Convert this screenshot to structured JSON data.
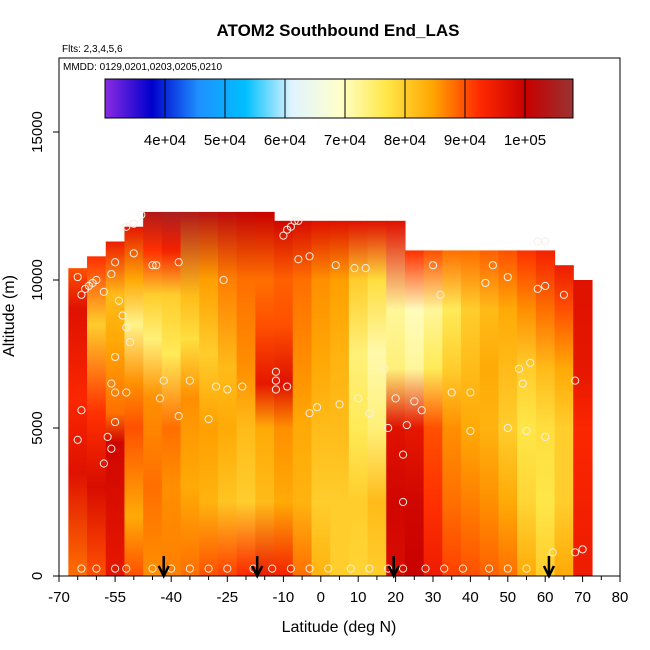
{
  "chart_data": {
    "type": "heatmap",
    "title": "ATOM2 Southbound End_LAS",
    "flights_text": "Flts: 2,3,4,5,6",
    "dates_text": "MMDD: 0129,0201,0203,0205,0210",
    "xlabel": "Latitude (deg N)",
    "ylabel": "Altitude (m)",
    "xlim": [
      -70,
      80
    ],
    "ylim": [
      0,
      17500
    ],
    "x_ticks": [
      -70,
      -55,
      -40,
      -25,
      -10,
      0,
      10,
      20,
      30,
      40,
      50,
      60,
      70,
      80
    ],
    "x_tick_labels": [
      "-70",
      "-55",
      "-40",
      "-25",
      "-10",
      "0",
      "10",
      "20",
      "30",
      "40",
      "50",
      "60",
      "70",
      "80"
    ],
    "y_ticks": [
      0,
      5000,
      10000,
      15000
    ],
    "y_tick_labels": [
      "0",
      "5000",
      "10000",
      "15000"
    ],
    "colorbar": {
      "min": 30000,
      "max": 108000,
      "ticks": [
        40000,
        50000,
        60000,
        70000,
        80000,
        90000,
        100000
      ],
      "tick_labels": [
        "4e+04",
        "5e+04",
        "6e+04",
        "7e+04",
        "8e+04",
        "9e+04",
        "1e+05"
      ],
      "colors": [
        "#8a2be2",
        "#0000cd",
        "#1e90ff",
        "#00bfff",
        "#e0f4ff",
        "#ffffcc",
        "#ffe84a",
        "#ffa500",
        "#ff2a00",
        "#c80000",
        "#993333"
      ]
    },
    "columns": [
      {
        "x": -65,
        "top": 10400,
        "stops": [
          [
            0,
            88000
          ],
          [
            3500,
            97000
          ],
          [
            6000,
            93000
          ],
          [
            9000,
            97000
          ],
          [
            10400,
            90000
          ]
        ]
      },
      {
        "x": -60,
        "top": 10800,
        "stops": [
          [
            0,
            90000
          ],
          [
            3000,
            98000
          ],
          [
            5500,
            92000
          ],
          [
            8500,
            80000
          ],
          [
            10800,
            92000
          ]
        ]
      },
      {
        "x": -55,
        "top": 11300,
        "stops": [
          [
            0,
            96000
          ],
          [
            4500,
            99000
          ],
          [
            5500,
            88000
          ],
          [
            8000,
            84000
          ],
          [
            9500,
            82000
          ],
          [
            11300,
            95000
          ]
        ]
      },
      {
        "x": -50,
        "top": 11800,
        "stops": [
          [
            0,
            90000
          ],
          [
            2000,
            84000
          ],
          [
            5000,
            90000
          ],
          [
            6500,
            86000
          ],
          [
            8500,
            73000
          ],
          [
            10000,
            84000
          ],
          [
            11800,
            96000
          ]
        ]
      },
      {
        "x": -45,
        "top": 12300,
        "stops": [
          [
            0,
            86000
          ],
          [
            3000,
            88000
          ],
          [
            6000,
            86000
          ],
          [
            8000,
            74000
          ],
          [
            9500,
            80000
          ],
          [
            11000,
            92000
          ],
          [
            12300,
            104000
          ]
        ]
      },
      {
        "x": -40,
        "top": 12300,
        "stops": [
          [
            0,
            87000
          ],
          [
            3000,
            86000
          ],
          [
            5000,
            88000
          ],
          [
            7500,
            76000
          ],
          [
            9500,
            80000
          ],
          [
            11000,
            94000
          ],
          [
            12300,
            105000
          ]
        ]
      },
      {
        "x": -35,
        "top": 12300,
        "stops": [
          [
            0,
            88000
          ],
          [
            3000,
            84000
          ],
          [
            6000,
            86000
          ],
          [
            8000,
            78000
          ],
          [
            9500,
            82000
          ],
          [
            12300,
            104000
          ]
        ]
      },
      {
        "x": -30,
        "top": 12300,
        "stops": [
          [
            0,
            90000
          ],
          [
            2500,
            83000
          ],
          [
            5000,
            85000
          ],
          [
            7500,
            80000
          ],
          [
            10000,
            85000
          ],
          [
            12300,
            103000
          ]
        ]
      },
      {
        "x": -25,
        "top": 12300,
        "stops": [
          [
            0,
            91000
          ],
          [
            2500,
            81000
          ],
          [
            5000,
            84000
          ],
          [
            7000,
            82000
          ],
          [
            10000,
            87000
          ],
          [
            12300,
            102000
          ]
        ]
      },
      {
        "x": -20,
        "top": 12300,
        "stops": [
          [
            0,
            93000
          ],
          [
            2500,
            80000
          ],
          [
            5000,
            82000
          ],
          [
            7000,
            86000
          ],
          [
            10000,
            88000
          ],
          [
            12300,
            101000
          ]
        ]
      },
      {
        "x": -15,
        "top": 12300,
        "stops": [
          [
            0,
            95000
          ],
          [
            2500,
            82000
          ],
          [
            5000,
            84000
          ],
          [
            6500,
            96000
          ],
          [
            8500,
            90000
          ],
          [
            10000,
            88000
          ],
          [
            12300,
            100000
          ]
        ]
      },
      {
        "x": -10,
        "top": 12000,
        "stops": [
          [
            0,
            94000
          ],
          [
            2500,
            84000
          ],
          [
            5000,
            86000
          ],
          [
            6500,
            97000
          ],
          [
            8500,
            90000
          ],
          [
            10000,
            89000
          ],
          [
            12000,
            99000
          ]
        ]
      },
      {
        "x": -5,
        "top": 12000,
        "stops": [
          [
            0,
            88000
          ],
          [
            2500,
            83000
          ],
          [
            5000,
            84000
          ],
          [
            7000,
            86000
          ],
          [
            10000,
            88000
          ],
          [
            12000,
            98000
          ]
        ]
      },
      {
        "x": 0,
        "top": 12000,
        "stops": [
          [
            0,
            83000
          ],
          [
            2500,
            80000
          ],
          [
            5000,
            82000
          ],
          [
            7000,
            84000
          ],
          [
            10000,
            86000
          ],
          [
            12000,
            97000
          ]
        ]
      },
      {
        "x": 5,
        "top": 12000,
        "stops": [
          [
            0,
            80000
          ],
          [
            2500,
            80000
          ],
          [
            5000,
            82000
          ],
          [
            7500,
            83000
          ],
          [
            10000,
            85000
          ],
          [
            12000,
            97000
          ]
        ]
      },
      {
        "x": 10,
        "top": 12000,
        "stops": [
          [
            0,
            79000
          ],
          [
            2500,
            80000
          ],
          [
            5000,
            76000
          ],
          [
            7500,
            74000
          ],
          [
            10000,
            80000
          ],
          [
            12000,
            97000
          ]
        ]
      },
      {
        "x": 15,
        "top": 12000,
        "stops": [
          [
            0,
            80000
          ],
          [
            2500,
            82000
          ],
          [
            5000,
            74000
          ],
          [
            7500,
            71000
          ],
          [
            10000,
            78000
          ],
          [
            12000,
            97000
          ]
        ]
      },
      {
        "x": 20,
        "top": 12000,
        "stops": [
          [
            0,
            98000
          ],
          [
            2500,
            99000
          ],
          [
            5000,
            97000
          ],
          [
            7000,
            74000
          ],
          [
            9000,
            72000
          ],
          [
            12000,
            97000
          ]
        ]
      },
      {
        "x": 25,
        "top": 11000,
        "stops": [
          [
            0,
            100000
          ],
          [
            2500,
            99000
          ],
          [
            5000,
            96000
          ],
          [
            7000,
            72000
          ],
          [
            9000,
            70000
          ],
          [
            11000,
            92000
          ]
        ]
      },
      {
        "x": 30,
        "top": 11000,
        "stops": [
          [
            0,
            95000
          ],
          [
            2500,
            92000
          ],
          [
            5000,
            90000
          ],
          [
            7000,
            76000
          ],
          [
            9000,
            72000
          ],
          [
            11000,
            90000
          ]
        ]
      },
      {
        "x": 35,
        "top": 11000,
        "stops": [
          [
            0,
            91000
          ],
          [
            2500,
            88000
          ],
          [
            5000,
            86000
          ],
          [
            7000,
            80000
          ],
          [
            9000,
            76000
          ],
          [
            11000,
            88000
          ]
        ]
      },
      {
        "x": 40,
        "top": 11000,
        "stops": [
          [
            0,
            90000
          ],
          [
            2500,
            87000
          ],
          [
            5000,
            84000
          ],
          [
            7000,
            82000
          ],
          [
            9000,
            80000
          ],
          [
            11000,
            88000
          ]
        ]
      },
      {
        "x": 45,
        "top": 11000,
        "stops": [
          [
            0,
            89000
          ],
          [
            2500,
            86000
          ],
          [
            5000,
            83000
          ],
          [
            7000,
            84000
          ],
          [
            9000,
            82000
          ],
          [
            11000,
            89000
          ]
        ]
      },
      {
        "x": 50,
        "top": 11000,
        "stops": [
          [
            0,
            88000
          ],
          [
            2500,
            84000
          ],
          [
            5000,
            80000
          ],
          [
            7000,
            82000
          ],
          [
            9000,
            84000
          ],
          [
            11000,
            90000
          ]
        ]
      },
      {
        "x": 55,
        "top": 11000,
        "stops": [
          [
            0,
            84000
          ],
          [
            2500,
            79000
          ],
          [
            5000,
            77000
          ],
          [
            7000,
            80000
          ],
          [
            9000,
            86000
          ],
          [
            11000,
            92000
          ]
        ]
      },
      {
        "x": 60,
        "top": 11000,
        "stops": [
          [
            0,
            80000
          ],
          [
            2500,
            77000
          ],
          [
            5000,
            78000
          ],
          [
            7000,
            82000
          ],
          [
            9000,
            88000
          ],
          [
            11000,
            94000
          ]
        ]
      },
      {
        "x": 65,
        "top": 10500,
        "stops": [
          [
            0,
            84000
          ],
          [
            2500,
            80000
          ],
          [
            5000,
            80000
          ],
          [
            7000,
            84000
          ],
          [
            9000,
            90000
          ],
          [
            10500,
            95000
          ]
        ]
      },
      {
        "x": 70,
        "top": 10000,
        "stops": [
          [
            0,
            95000
          ],
          [
            2500,
            94000
          ],
          [
            5000,
            93000
          ],
          [
            7000,
            96000
          ],
          [
            10000,
            97000
          ]
        ]
      }
    ],
    "markers_x": [
      -42,
      -17,
      19.5,
      61
    ],
    "points": [
      [
        -65,
        10100
      ],
      [
        -64,
        9500
      ],
      [
        -63,
        9700
      ],
      [
        -62,
        9800
      ],
      [
        -61,
        9900
      ],
      [
        -60,
        10000
      ],
      [
        -58,
        9600
      ],
      [
        -56,
        10200
      ],
      [
        -55,
        10600
      ],
      [
        -54,
        9300
      ],
      [
        -53,
        8800
      ],
      [
        -52,
        8400
      ],
      [
        -51,
        7900
      ],
      [
        -55,
        7400
      ],
      [
        -56,
        6500
      ],
      [
        -55,
        6200
      ],
      [
        -52,
        6200
      ],
      [
        -55,
        5200
      ],
      [
        -57,
        4700
      ],
      [
        -56,
        4300
      ],
      [
        -58,
        3800
      ],
      [
        -64,
        5600
      ],
      [
        -65,
        4600
      ],
      [
        -64,
        250
      ],
      [
        -52,
        11800
      ],
      [
        -50,
        11900
      ],
      [
        -48,
        12200
      ],
      [
        -50,
        10900
      ],
      [
        -45,
        10500
      ],
      [
        -44,
        10500
      ],
      [
        -38,
        10600
      ],
      [
        -35,
        6600
      ],
      [
        -43,
        6000
      ],
      [
        -42,
        6600
      ],
      [
        -38,
        5400
      ],
      [
        -30,
        5300
      ],
      [
        -28,
        6400
      ],
      [
        -25,
        6300
      ],
      [
        -21,
        6400
      ],
      [
        -26,
        10000
      ],
      [
        -12,
        6600
      ],
      [
        -12,
        6900
      ],
      [
        -12,
        6300
      ],
      [
        -9,
        6400
      ],
      [
        -6,
        10700
      ],
      [
        -3,
        10800
      ],
      [
        -10,
        11500
      ],
      [
        -9,
        11700
      ],
      [
        -8,
        11800
      ],
      [
        -7,
        12000
      ],
      [
        -6,
        12000
      ],
      [
        4,
        10500
      ],
      [
        9,
        10400
      ],
      [
        12,
        10400
      ],
      [
        17,
        7000
      ],
      [
        -3,
        5500
      ],
      [
        -1,
        5700
      ],
      [
        5,
        5800
      ],
      [
        10,
        6000
      ],
      [
        13,
        5500
      ],
      [
        18,
        5000
      ],
      [
        20,
        6000
      ],
      [
        22,
        4100
      ],
      [
        23,
        5100
      ],
      [
        25,
        5900
      ],
      [
        27,
        5600
      ],
      [
        22,
        2500
      ],
      [
        30,
        10500
      ],
      [
        32,
        9500
      ],
      [
        35,
        6200
      ],
      [
        40,
        6200
      ],
      [
        40,
        4900
      ],
      [
        44,
        9900
      ],
      [
        46,
        10500
      ],
      [
        50,
        10100
      ],
      [
        53,
        7000
      ],
      [
        56,
        7200
      ],
      [
        58,
        11300
      ],
      [
        60,
        11300
      ],
      [
        65,
        9500
      ],
      [
        60,
        9800
      ],
      [
        58,
        9700
      ],
      [
        54,
        6500
      ],
      [
        50,
        5000
      ],
      [
        55,
        4900
      ],
      [
        60,
        4700
      ],
      [
        68,
        6600
      ],
      [
        -60,
        250
      ],
      [
        -55,
        250
      ],
      [
        -52,
        250
      ],
      [
        -45,
        250
      ],
      [
        -40,
        250
      ],
      [
        -35,
        250
      ],
      [
        -30,
        250
      ],
      [
        -25,
        250
      ],
      [
        -18,
        250
      ],
      [
        -13,
        250
      ],
      [
        -8,
        250
      ],
      [
        -3,
        250
      ],
      [
        2,
        250
      ],
      [
        8,
        250
      ],
      [
        13,
        250
      ],
      [
        18,
        250
      ],
      [
        22,
        250
      ],
      [
        28,
        250
      ],
      [
        33,
        250
      ],
      [
        38,
        250
      ],
      [
        45,
        250
      ],
      [
        50,
        250
      ],
      [
        55,
        250
      ],
      [
        62,
        800
      ],
      [
        68,
        800
      ],
      [
        70,
        900
      ]
    ]
  }
}
